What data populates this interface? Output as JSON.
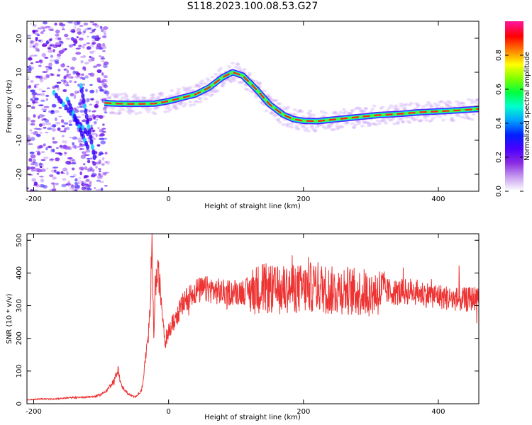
{
  "title": "S118.2023.100.08.53.G27",
  "chart_data": [
    {
      "type": "heatmap",
      "xlabel": "Height of straight line (km)",
      "ylabel": "Frequency (Hz)",
      "xlim": [
        -210,
        460
      ],
      "ylim": [
        -25,
        25
      ],
      "x_ticks": [
        -200,
        0,
        200,
        400
      ],
      "y_ticks": [
        -20,
        -10,
        0,
        10,
        20
      ],
      "grid": false,
      "ridge": {
        "name": "dominant frequency",
        "x": [
          -95,
          -80,
          -60,
          -40,
          -20,
          0,
          20,
          40,
          60,
          80,
          95,
          110,
          130,
          150,
          170,
          185,
          200,
          220,
          250,
          280,
          310,
          340,
          370,
          400,
          430,
          460
        ],
        "y": [
          1,
          0.8,
          0.7,
          0.7,
          0.8,
          1.5,
          2.5,
          3.5,
          5.5,
          8.5,
          10,
          9,
          5,
          0.5,
          -2.5,
          -3.8,
          -4.3,
          -4.4,
          -3.8,
          -3.2,
          -2.6,
          -2.3,
          -1.8,
          -1.5,
          -1.2,
          -0.8
        ]
      },
      "noise_region": {
        "x_from": -210,
        "x_to": -90,
        "y_from": -25,
        "y_to": 25
      },
      "colorbar": {
        "label": "Normalized spectral amplitude",
        "range": [
          0.0,
          1.0
        ],
        "ticks": [
          "0.0",
          "0.2",
          "0.4",
          "0.6",
          "0.8"
        ],
        "colors": [
          "#ffffff",
          "#c79cf0",
          "#8a2be2",
          "#4a00ff",
          "#0020ff",
          "#00a0ff",
          "#00ffd0",
          "#00ff40",
          "#80ff00",
          "#ffff00",
          "#ff8000",
          "#ff0000",
          "#ff1493"
        ]
      }
    },
    {
      "type": "line",
      "xlabel": "Height of straight line (km)",
      "ylabel": "SNR (10 * v/v)",
      "xlim": [
        -210,
        460
      ],
      "ylim": [
        0,
        520
      ],
      "x_ticks": [
        -200,
        0,
        200,
        400
      ],
      "y_ticks": [
        0,
        100,
        200,
        300,
        400,
        500
      ],
      "grid": false,
      "series": [
        {
          "color": "#ee3333",
          "x": [
            -210,
            -190,
            -170,
            -150,
            -130,
            -110,
            -100,
            -90,
            -80,
            -75,
            -70,
            -60,
            -50,
            -40,
            -35,
            -30,
            -27,
            -25,
            -22,
            -20,
            -15,
            -10,
            -5,
            0,
            10,
            20,
            30,
            40,
            60,
            80,
            100,
            120,
            140,
            160,
            180,
            200,
            220,
            240,
            260,
            280,
            300,
            320,
            340,
            360,
            380,
            400,
            420,
            440,
            460
          ],
          "y": [
            12,
            15,
            14,
            18,
            20,
            22,
            28,
            45,
            75,
            105,
            55,
            30,
            20,
            40,
            120,
            230,
            280,
            515,
            200,
            360,
            400,
            300,
            190,
            220,
            260,
            300,
            330,
            345,
            350,
            340,
            342,
            345,
            355,
            345,
            355,
            350,
            360,
            345,
            350,
            340,
            340,
            345,
            340,
            345,
            335,
            330,
            320,
            318,
            325
          ]
        }
      ]
    }
  ]
}
